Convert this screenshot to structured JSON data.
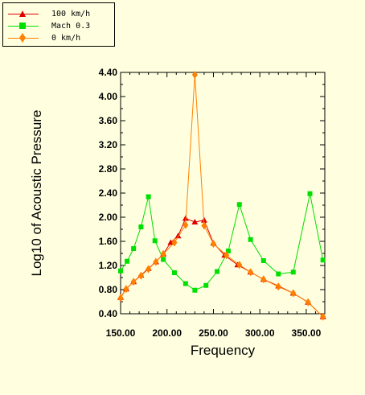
{
  "chart_data": {
    "type": "line",
    "title": "",
    "xlabel": "Frequency",
    "ylabel": "Log10 of Acoustic Pressure",
    "xlim": [
      150,
      370
    ],
    "ylim": [
      0.4,
      4.4
    ],
    "xticks": [
      "150.00",
      "200.00",
      "250.00",
      "300.00",
      "350.00"
    ],
    "yticks": [
      "0.40",
      "0.80",
      "1.20",
      "1.60",
      "2.00",
      "2.40",
      "2.80",
      "3.20",
      "3.60",
      "4.00",
      "4.40"
    ],
    "legend_position": "top-left",
    "series": [
      {
        "name": "100 km/h",
        "color": "#e00000",
        "marker": "triangle",
        "x": [
          150,
          156,
          164,
          172,
          180,
          188,
          196,
          204,
          212,
          220,
          230,
          240,
          250,
          262,
          276,
          290,
          304,
          320,
          336,
          352,
          368
        ],
        "y": [
          0.67,
          0.81,
          0.93,
          1.04,
          1.15,
          1.26,
          1.39,
          1.58,
          1.69,
          1.98,
          1.92,
          1.95,
          1.57,
          1.37,
          1.21,
          1.09,
          0.97,
          0.86,
          0.74,
          0.59,
          0.35
        ]
      },
      {
        "name": "Mach 0.3",
        "color": "#00e000",
        "marker": "square",
        "x": [
          150,
          157,
          164,
          172,
          180,
          187,
          196,
          208,
          220,
          230,
          242,
          254,
          266,
          278,
          290,
          304,
          320,
          336,
          354,
          368
        ],
        "y": [
          1.11,
          1.27,
          1.48,
          1.84,
          2.34,
          1.61,
          1.3,
          1.08,
          0.9,
          0.79,
          0.87,
          1.1,
          1.44,
          2.21,
          1.63,
          1.28,
          1.06,
          1.09,
          2.39,
          1.29
        ]
      },
      {
        "name": "0 km/h",
        "color": "#ff8000",
        "marker": "diamond",
        "x": [
          150,
          156,
          164,
          172,
          180,
          188,
          196,
          208,
          220,
          230,
          240,
          250,
          264,
          278,
          290,
          304,
          320,
          336,
          352,
          368
        ],
        "y": [
          0.66,
          0.81,
          0.93,
          1.03,
          1.14,
          1.26,
          1.39,
          1.58,
          1.87,
          4.36,
          1.86,
          1.56,
          1.37,
          1.21,
          1.09,
          0.97,
          0.85,
          0.74,
          0.59,
          0.35
        ]
      }
    ]
  }
}
